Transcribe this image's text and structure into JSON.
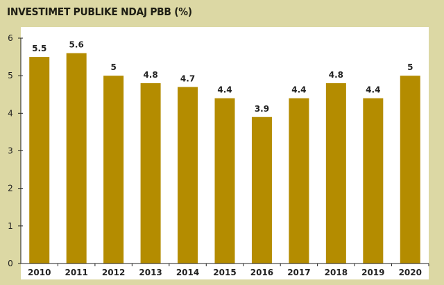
{
  "chart_data": {
    "type": "bar",
    "title": "INVESTIMET PUBLIKE NDAJ PBB (%)",
    "xlabel": "",
    "ylabel": "",
    "categories": [
      "2010",
      "2011",
      "2012",
      "2013",
      "2014",
      "2015",
      "2016",
      "2017",
      "2018",
      "2019",
      "2020"
    ],
    "values": [
      5.5,
      5.6,
      5,
      4.8,
      4.7,
      4.4,
      3.9,
      4.4,
      4.8,
      4.4,
      5
    ],
    "value_labels": [
      "5.5",
      "5.6",
      "5",
      "4.8",
      "4.7",
      "4.4",
      "3.9",
      "4.4",
      "4.8",
      "4.4",
      "5"
    ],
    "ylim": [
      0,
      6
    ],
    "yticks": [
      0,
      1,
      2,
      3,
      4,
      5,
      6
    ],
    "grid": false,
    "legend": "none",
    "colors": {
      "bar": "#b48c00",
      "background": "#dcd8a4",
      "plot_background": "#ffffff",
      "axis": "#222222"
    }
  }
}
